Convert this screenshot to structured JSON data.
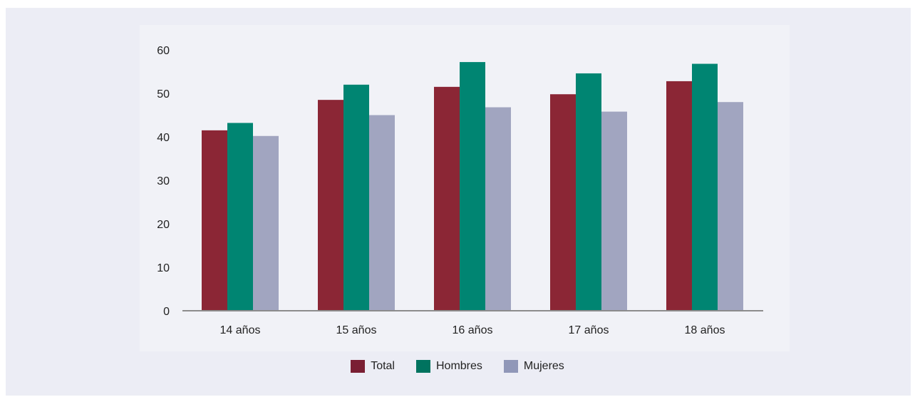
{
  "chart_data": {
    "type": "bar",
    "categories": [
      "14 años",
      "15 años",
      "16 años",
      "17 años",
      "18 años"
    ],
    "series": [
      {
        "name": "Total",
        "color": "#8b2635",
        "values": [
          41.5,
          48.5,
          51.5,
          49.8,
          52.8
        ]
      },
      {
        "name": "Hombres",
        "color": "#008572",
        "values": [
          43.2,
          52.0,
          57.2,
          54.6,
          56.8
        ]
      },
      {
        "name": "Mujeres",
        "color": "#a1a5c0",
        "values": [
          40.2,
          45.0,
          46.8,
          45.8,
          48.0
        ]
      }
    ],
    "ylim": [
      0,
      60
    ],
    "yticks": [
      0,
      10,
      20,
      30,
      40,
      50,
      60
    ],
    "legend_position": "bottom-center",
    "grid": false
  },
  "legend": {
    "total_label": "Total",
    "hombres_label": "Hombres",
    "mujeres_label": "Mujeres"
  }
}
